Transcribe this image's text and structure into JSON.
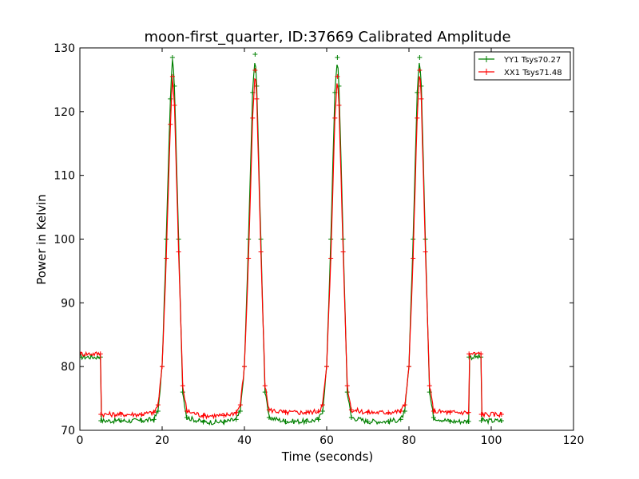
{
  "chart_data": {
    "type": "line",
    "title": "moon-first_quarter, ID:37669 Calibrated Amplitude",
    "xlabel": "Time (seconds)",
    "ylabel": "Power in Kelvin",
    "xlim": [
      0,
      120
    ],
    "ylim": [
      70,
      130
    ],
    "xticks": [
      0,
      20,
      40,
      60,
      80,
      100,
      120
    ],
    "yticks": [
      70,
      80,
      90,
      100,
      110,
      120,
      130
    ],
    "grid": false,
    "legend_position": "top-right",
    "series": [
      {
        "name": "YY1 Tsys70.27",
        "color": "#008000",
        "x": [
          0,
          5,
          5.1,
          10,
          15,
          18,
          19,
          20,
          21,
          22,
          22.5,
          23,
          24,
          25,
          26,
          30,
          35,
          38,
          39,
          40,
          41,
          42,
          42.6,
          43,
          44,
          45,
          46,
          50,
          55,
          58,
          59,
          60,
          61,
          62,
          62.6,
          63,
          64,
          65,
          66,
          70,
          75,
          78,
          79,
          80,
          81,
          82,
          82.6,
          83,
          84,
          85,
          86,
          90,
          94.5,
          94.6,
          97.5,
          97.6,
          102.5
        ],
        "y": [
          81.5,
          81.5,
          71.5,
          71.5,
          71.5,
          71.7,
          73,
          80,
          100,
          122,
          128.5,
          124,
          100,
          76,
          72,
          71.3,
          71.3,
          71.7,
          73,
          80,
          100,
          123,
          129,
          124,
          100,
          76,
          72,
          71.4,
          71.4,
          71.7,
          73,
          80,
          100,
          123,
          128.5,
          124,
          100,
          76,
          72,
          71.4,
          71.4,
          71.7,
          73,
          80,
          100,
          123,
          128.5,
          124,
          100,
          76,
          72,
          71.4,
          71.4,
          81.5,
          81.5,
          71.5,
          71.5
        ]
      },
      {
        "name": "XX1 Tsys71.48",
        "color": "#ff0000",
        "x": [
          0,
          5,
          5.1,
          10,
          15,
          18,
          19,
          20,
          21,
          22,
          22.5,
          23,
          24,
          25,
          26,
          30,
          35,
          38,
          39,
          40,
          41,
          42,
          42.6,
          43,
          44,
          45,
          46,
          50,
          55,
          58,
          59,
          60,
          61,
          62,
          62.6,
          63,
          64,
          65,
          66,
          70,
          75,
          78,
          79,
          80,
          81,
          82,
          82.6,
          83,
          84,
          85,
          86,
          90,
          94.5,
          94.6,
          97.5,
          97.6,
          102.5
        ],
        "y": [
          82,
          82,
          72.5,
          72.5,
          72.5,
          72.8,
          74,
          80,
          97,
          118,
          125.5,
          121,
          98,
          77,
          73,
          72.3,
          72.3,
          72.8,
          74,
          80,
          97,
          119,
          126.5,
          122,
          98,
          77,
          73.2,
          72.8,
          72.8,
          73,
          74,
          80,
          97,
          119,
          125.5,
          121,
          98,
          77,
          73.2,
          72.8,
          72.8,
          73,
          74,
          80,
          97,
          119,
          126.5,
          122,
          98,
          77,
          73,
          72.8,
          72.8,
          82,
          82,
          72.5,
          72.5
        ]
      }
    ]
  }
}
